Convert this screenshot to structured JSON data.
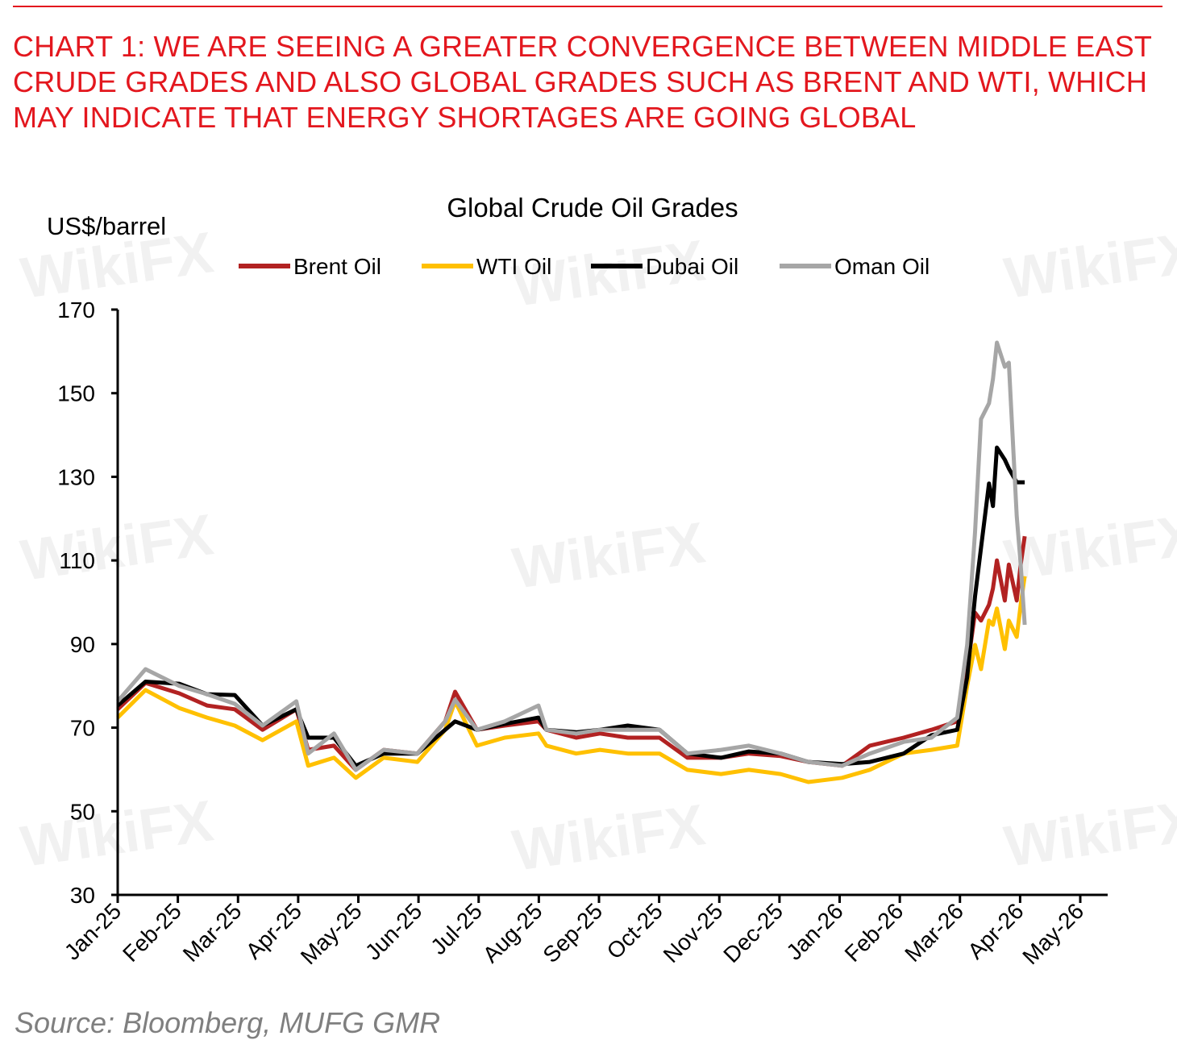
{
  "headline": "CHART 1: WE ARE SEEING A GREATER CONVERGENCE BETWEEN MIDDLE EAST CRUDE GRADES AND ALSO GLOBAL GRADES SUCH AS BRENT AND WTI, WHICH MAY INDICATE THAT ENERGY SHORTAGES ARE GOING GLOBAL",
  "source": "Source: Bloomberg, MUFG GMR",
  "watermark": "WikiFX",
  "chart_data": {
    "type": "line",
    "title": "Global Crude Oil Grades",
    "ylabel": "US$/barrel",
    "xlabel": "",
    "ylim": [
      30,
      170
    ],
    "yticks": [
      30,
      50,
      70,
      90,
      110,
      130,
      150,
      170
    ],
    "xlim": [
      "2025-01-01",
      "2026-05-01"
    ],
    "xticks": [
      "Jan-25",
      "Feb-25",
      "Mar-25",
      "Apr-25",
      "May-25",
      "Jun-25",
      "Jul-25",
      "Aug-25",
      "Sep-25",
      "Oct-25",
      "Nov-25",
      "Dec-25",
      "Jan-26",
      "Feb-26",
      "Mar-26",
      "Apr-26",
      "May-26"
    ],
    "grid": false,
    "legend": "top",
    "x": [
      "2025-01-01",
      "2025-01-15",
      "2025-02-01",
      "2025-02-15",
      "2025-03-01",
      "2025-03-15",
      "2025-04-01",
      "2025-04-07",
      "2025-04-20",
      "2025-05-01",
      "2025-05-15",
      "2025-06-01",
      "2025-06-15",
      "2025-06-20",
      "2025-07-01",
      "2025-07-15",
      "2025-08-01",
      "2025-08-05",
      "2025-08-20",
      "2025-09-01",
      "2025-09-15",
      "2025-10-01",
      "2025-10-15",
      "2025-11-01",
      "2025-11-15",
      "2025-12-01",
      "2025-12-15",
      "2026-01-01",
      "2026-01-15",
      "2026-02-01",
      "2026-02-15",
      "2026-02-28",
      "2026-03-05",
      "2026-03-09",
      "2026-03-12",
      "2026-03-16",
      "2026-03-18",
      "2026-03-20",
      "2026-03-24",
      "2026-03-26",
      "2026-03-30",
      "2026-04-01",
      "2026-04-03"
    ],
    "series": [
      {
        "name": "Brent Oil",
        "color": "#b22222",
        "values": [
          74.4,
          80.7,
          78.2,
          75.3,
          74.4,
          69.5,
          74.4,
          64.7,
          65.7,
          59.9,
          64.7,
          63.8,
          71.5,
          78.6,
          69.5,
          70.5,
          71.5,
          69.5,
          67.6,
          68.6,
          67.6,
          67.6,
          62.8,
          62.8,
          63.8,
          63.2,
          61.8,
          60.9,
          65.7,
          67.6,
          69.5,
          71.5,
          84,
          97.5,
          95.6,
          99.4,
          103.3,
          110,
          100.4,
          109,
          100.4,
          109,
          115.8
        ]
      },
      {
        "name": "WTI Oil",
        "color": "#ffc000",
        "values": [
          72.4,
          79,
          74.7,
          72.4,
          70.5,
          67,
          71.5,
          60.9,
          62.8,
          58,
          62.8,
          61.8,
          69.5,
          76.3,
          65.7,
          67.6,
          68.6,
          65.7,
          63.8,
          64.7,
          63.8,
          63.8,
          59.9,
          58.9,
          59.9,
          58.9,
          57,
          58,
          59.9,
          63.8,
          64.7,
          65.7,
          80,
          89.8,
          84,
          95.6,
          94.6,
          98.5,
          88.8,
          95.6,
          91.7,
          99.4,
          106.2
        ]
      },
      {
        "name": "Dubai Oil",
        "color": "#000000",
        "values": [
          75.3,
          81,
          80.5,
          78,
          77.8,
          70.5,
          74.4,
          67.6,
          67.6,
          60.9,
          63.8,
          63.8,
          69.5,
          71.5,
          69.5,
          70.9,
          72.4,
          69.5,
          68.9,
          69.5,
          70.5,
          69.5,
          63.8,
          62.8,
          64.3,
          63.8,
          61.8,
          61.3,
          61.8,
          63.8,
          68.2,
          69.5,
          82,
          101.4,
          113,
          128.4,
          123,
          137,
          134.1,
          132,
          128.7,
          128.7,
          128.7
        ]
      },
      {
        "name": "Oman Oil",
        "color": "#a6a6a6",
        "values": [
          76.3,
          84,
          80,
          78,
          75.7,
          70.5,
          76.3,
          63.8,
          68.6,
          59.9,
          64.7,
          63.8,
          71.5,
          76.7,
          69.5,
          71.5,
          75.3,
          69.5,
          68.6,
          69.5,
          69.5,
          69.5,
          63.8,
          64.7,
          65.7,
          63.8,
          61.8,
          60.9,
          63.8,
          66.6,
          67.6,
          72.4,
          89.8,
          116.8,
          143.8,
          147.6,
          153.4,
          162.1,
          156.3,
          157.3,
          120.6,
          109,
          94.6
        ]
      }
    ]
  }
}
